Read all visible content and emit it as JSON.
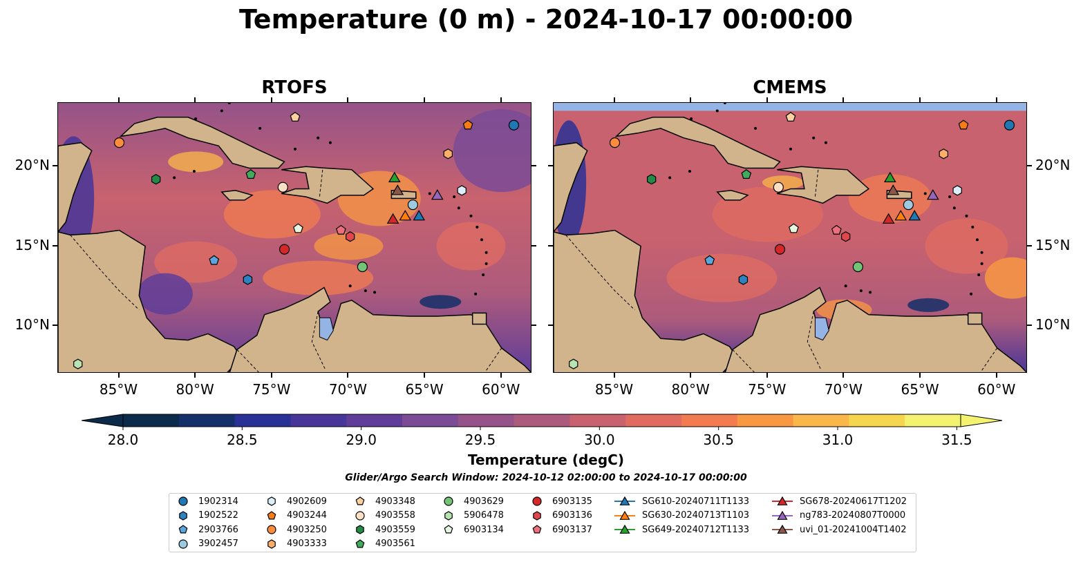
{
  "title": "Temperature (0 m) - 2024-10-17 00:00:00",
  "panels": [
    {
      "title": "RTOFS",
      "model": "rtofs"
    },
    {
      "title": "CMEMS",
      "model": "cmems"
    }
  ],
  "map": {
    "lon_range": [
      -89,
      -58
    ],
    "lat_range": [
      7,
      24
    ],
    "lon_ticks": [
      -85,
      -80,
      -75,
      -70,
      -65,
      -60
    ],
    "lon_tick_labels": [
      "85°W",
      "80°W",
      "75°W",
      "70°W",
      "65°W",
      "60°W"
    ],
    "lat_ticks": [
      10,
      15,
      20
    ],
    "lat_tick_labels": [
      "10°N",
      "15°N",
      "20°N"
    ],
    "land_color": "#d2b48c",
    "lake_color": "#93b4e4"
  },
  "colorbar": {
    "min": 28.0,
    "max": 31.5,
    "ticks": [
      28.0,
      28.5,
      29.0,
      29.5,
      30.0,
      30.5,
      31.0,
      31.5
    ],
    "tick_labels": [
      "28.0",
      "28.5",
      "29.0",
      "29.5",
      "30.0",
      "30.5",
      "31.0",
      "31.5"
    ],
    "label": "Temperature (degC)",
    "colors": [
      "#0c2a4a",
      "#142f69",
      "#2a3196",
      "#473599",
      "#5f3d99",
      "#7b4b95",
      "#955389",
      "#ad5b7c",
      "#c8626e",
      "#e06c61",
      "#f27c50",
      "#f89843",
      "#fab84a",
      "#f6d64f",
      "#f3f36f"
    ],
    "extend": "both"
  },
  "search_window": "Glider/Argo Search Window: 2024-10-12 02:00:00 to 2024-10-17 00:00:00",
  "legend": {
    "columns": [
      [
        {
          "label": "1902314",
          "marker": "circle",
          "color": "#1f77b4"
        },
        {
          "label": "1902522",
          "marker": "hexagon",
          "color": "#2e82c0"
        },
        {
          "label": "2903766",
          "marker": "pentagon",
          "color": "#5aa5dc"
        },
        {
          "label": "3902457",
          "marker": "circle",
          "color": "#9ecae1"
        }
      ],
      [
        {
          "label": "4902609",
          "marker": "hexagon",
          "color": "#dbeefa"
        },
        {
          "label": "4903244",
          "marker": "pentagon",
          "color": "#f57d18"
        },
        {
          "label": "4903250",
          "marker": "circle",
          "color": "#fd8d3c"
        },
        {
          "label": "4903333",
          "marker": "hexagon",
          "color": "#fdae6b"
        }
      ],
      [
        {
          "label": "4903348",
          "marker": "pentagon",
          "color": "#fdd0a2"
        },
        {
          "label": "4903558",
          "marker": "circle",
          "color": "#fde0c5"
        },
        {
          "label": "4903559",
          "marker": "hexagon",
          "color": "#238b45"
        },
        {
          "label": "4903561",
          "marker": "pentagon",
          "color": "#41ab5d"
        }
      ],
      [
        {
          "label": "4903629",
          "marker": "circle",
          "color": "#74c476"
        },
        {
          "label": "5906478",
          "marker": "hexagon",
          "color": "#b7e4b0"
        },
        {
          "label": "6903134",
          "marker": "pentagon",
          "color": "#e5f5e0"
        }
      ],
      [
        {
          "label": "6903135",
          "marker": "circle",
          "color": "#d62728"
        },
        {
          "label": "6903136",
          "marker": "hexagon",
          "color": "#e0474c"
        },
        {
          "label": "6903137",
          "marker": "pentagon",
          "color": "#ef6e7d"
        }
      ],
      [
        {
          "label": "SG610-20240711T1133",
          "marker": "triangle",
          "color": "#1f77b4",
          "line": true
        },
        {
          "label": "SG630-20240713T1103",
          "marker": "triangle",
          "color": "#ff7f0e",
          "line": true
        },
        {
          "label": "SG649-20240712T1133",
          "marker": "triangle",
          "color": "#2ca02c",
          "line": true
        }
      ],
      [
        {
          "label": "SG678-20240617T1202",
          "marker": "triangle",
          "color": "#d62728",
          "line": true
        },
        {
          "label": "ng783-20240807T0000",
          "marker": "triangle",
          "color": "#9467bd",
          "line": true
        },
        {
          "label": "uvi_01-20241004T1402",
          "marker": "triangle",
          "color": "#8c564b",
          "line": true
        }
      ]
    ]
  },
  "observations": [
    {
      "id": "1902314",
      "lon": -59.2,
      "lat": 22.6
    },
    {
      "id": "1902522",
      "lon": -76.6,
      "lat": 12.9
    },
    {
      "id": "2903766",
      "lon": -78.8,
      "lat": 14.1
    },
    {
      "id": "3902457",
      "lon": -65.8,
      "lat": 17.6
    },
    {
      "id": "4902609",
      "lon": -62.6,
      "lat": 18.5
    },
    {
      "id": "4903244",
      "lon": -62.2,
      "lat": 22.6
    },
    {
      "id": "4903250",
      "lon": -85.0,
      "lat": 21.5
    },
    {
      "id": "4903333",
      "lon": -63.5,
      "lat": 20.8
    },
    {
      "id": "4903348",
      "lon": -73.5,
      "lat": 23.1
    },
    {
      "id": "4903558",
      "lon": -74.3,
      "lat": 18.7
    },
    {
      "id": "4903559",
      "lon": -82.6,
      "lat": 19.2
    },
    {
      "id": "4903561",
      "lon": -76.4,
      "lat": 19.5
    },
    {
      "id": "4903629",
      "lon": -69.1,
      "lat": 13.7
    },
    {
      "id": "5906478",
      "lon": -87.7,
      "lat": 7.6
    },
    {
      "id": "6903134",
      "lon": -73.3,
      "lat": 16.1
    },
    {
      "id": "6903135",
      "lon": -74.2,
      "lat": 14.8
    },
    {
      "id": "6903136",
      "lon": -69.9,
      "lat": 15.6
    },
    {
      "id": "6903137",
      "lon": -70.5,
      "lat": 16.0
    },
    {
      "id": "SG610-20240711T1133",
      "lon": -65.4,
      "lat": 16.9
    },
    {
      "id": "SG630-20240713T1103",
      "lon": -66.3,
      "lat": 16.9
    },
    {
      "id": "SG649-20240712T1133",
      "lon": -67.0,
      "lat": 19.3
    },
    {
      "id": "SG678-20240617T1202",
      "lon": -67.1,
      "lat": 16.7
    },
    {
      "id": "ng783-20240807T0000",
      "lon": -64.2,
      "lat": 18.2
    },
    {
      "id": "uvi_01-20241004T1402",
      "lon": -66.8,
      "lat": 18.5
    }
  ]
}
